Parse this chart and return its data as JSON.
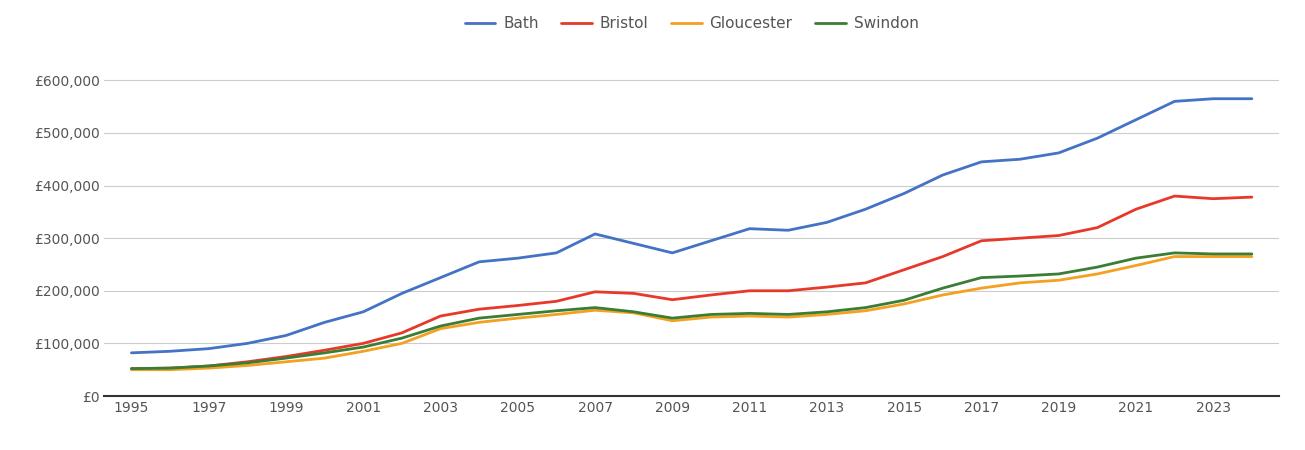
{
  "years": [
    1995,
    1996,
    1997,
    1998,
    1999,
    2000,
    2001,
    2002,
    2003,
    2004,
    2005,
    2006,
    2007,
    2008,
    2009,
    2010,
    2011,
    2012,
    2013,
    2014,
    2015,
    2016,
    2017,
    2018,
    2019,
    2020,
    2021,
    2022,
    2023,
    2024
  ],
  "Bath": [
    82000,
    85000,
    90000,
    100000,
    115000,
    140000,
    160000,
    195000,
    225000,
    255000,
    262000,
    272000,
    308000,
    290000,
    272000,
    295000,
    318000,
    315000,
    330000,
    355000,
    385000,
    420000,
    445000,
    450000,
    462000,
    490000,
    525000,
    560000,
    565000,
    565000
  ],
  "Bristol": [
    52000,
    53000,
    57000,
    65000,
    75000,
    87000,
    100000,
    120000,
    152000,
    165000,
    172000,
    180000,
    198000,
    195000,
    183000,
    192000,
    200000,
    200000,
    207000,
    215000,
    240000,
    265000,
    295000,
    300000,
    305000,
    320000,
    355000,
    380000,
    375000,
    378000
  ],
  "Gloucester": [
    50000,
    50000,
    53000,
    58000,
    65000,
    72000,
    85000,
    100000,
    128000,
    140000,
    148000,
    155000,
    163000,
    158000,
    143000,
    150000,
    152000,
    150000,
    155000,
    162000,
    175000,
    192000,
    205000,
    215000,
    220000,
    232000,
    248000,
    265000,
    265000,
    265000
  ],
  "Swindon": [
    52000,
    53000,
    57000,
    63000,
    72000,
    82000,
    93000,
    110000,
    133000,
    148000,
    155000,
    162000,
    168000,
    160000,
    148000,
    155000,
    157000,
    155000,
    160000,
    168000,
    182000,
    205000,
    225000,
    228000,
    232000,
    245000,
    262000,
    272000,
    270000,
    270000
  ],
  "colors": {
    "Bath": "#4472c4",
    "Bristol": "#e8382a",
    "Gloucester": "#f4a020",
    "Swindon": "#3a7d35"
  },
  "ylim": [
    0,
    650000
  ],
  "yticks": [
    0,
    100000,
    200000,
    300000,
    400000,
    500000,
    600000
  ],
  "xticks": [
    1995,
    1997,
    1999,
    2001,
    2003,
    2005,
    2007,
    2009,
    2011,
    2013,
    2015,
    2017,
    2019,
    2021,
    2023
  ],
  "background_color": "#ffffff",
  "grid_color": "#cccccc",
  "legend_labels": [
    "Bath",
    "Bristol",
    "Gloucester",
    "Swindon"
  ],
  "line_width": 2.0,
  "tick_label_color": "#555555",
  "tick_label_size": 10,
  "legend_fontsize": 11
}
